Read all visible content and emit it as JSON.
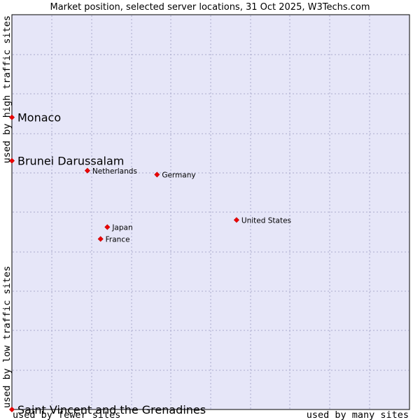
{
  "chart_data": {
    "type": "scatter",
    "title": "Market position, selected server locations, 31 Oct 2025, W3Techs.com",
    "xlabel_left": "used by fewer sites",
    "xlabel_right": "used by many sites",
    "ylabel_bottom": "used by low traffic sites",
    "ylabel_top": "used by high traffic sites",
    "xlim": [
      0,
      100
    ],
    "ylim": [
      0,
      100
    ],
    "grid": true,
    "points": [
      {
        "label": "Monaco",
        "x": 0.0,
        "y": 74.0,
        "emphasis": true
      },
      {
        "label": "Brunei Darussalam",
        "x": 0.0,
        "y": 63.0,
        "emphasis": true
      },
      {
        "label": "Netherlands",
        "x": 19.0,
        "y": 60.5,
        "emphasis": false
      },
      {
        "label": "Germany",
        "x": 36.5,
        "y": 59.5,
        "emphasis": false
      },
      {
        "label": "United States",
        "x": 56.5,
        "y": 48.0,
        "emphasis": false
      },
      {
        "label": "Japan",
        "x": 24.0,
        "y": 46.2,
        "emphasis": false
      },
      {
        "label": "France",
        "x": 22.3,
        "y": 43.2,
        "emphasis": false
      },
      {
        "label": "Saint Vincent and the Grenadines",
        "x": 0.0,
        "y": 0.0,
        "emphasis": true
      }
    ]
  }
}
